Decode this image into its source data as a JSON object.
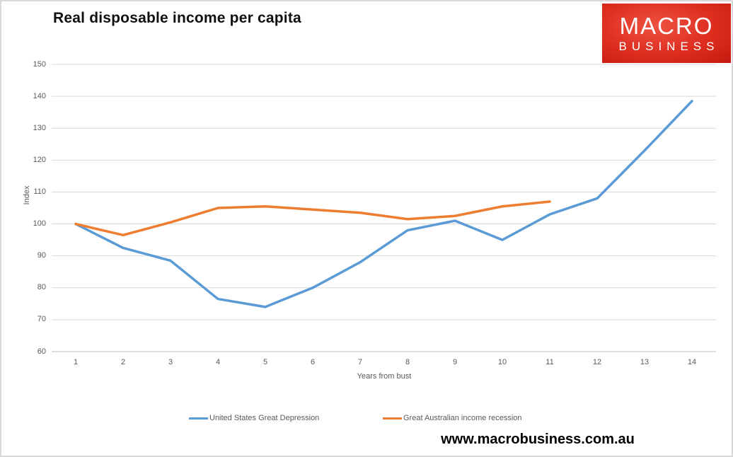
{
  "page": {
    "title": "Real disposable income per capita",
    "footer": "www.macrobusiness.com.au"
  },
  "logo": {
    "line1": "MACRO",
    "line2": "BUSINESS",
    "bg_color": "#d9261a",
    "text_color": "#ffffff"
  },
  "colors": {
    "us_series": "#5B9BD5",
    "au_series": "#ED7D31",
    "gridline": "#D9D9D9",
    "axis_line": "#BFBFBF",
    "tick_label": "#595959"
  },
  "chart_data": {
    "type": "line",
    "title": "Real disposable income per capita",
    "xlabel": "Years from bust",
    "ylabel": "Index",
    "xlim": [
      1,
      14
    ],
    "ylim": [
      60,
      150
    ],
    "ytick_step": 10,
    "yticks": [
      60,
      70,
      80,
      90,
      100,
      110,
      120,
      130,
      140,
      150
    ],
    "xticks": [
      1,
      2,
      3,
      4,
      5,
      6,
      7,
      8,
      9,
      10,
      11,
      12,
      13,
      14
    ],
    "grid": true,
    "legend_position": "bottom",
    "series": [
      {
        "name": "United States Great Depression",
        "color": "#5B9BD5",
        "x": [
          1,
          2,
          3,
          4,
          5,
          6,
          7,
          8,
          9,
          10,
          11,
          12,
          13,
          14
        ],
        "values": [
          100,
          92.5,
          88.5,
          76.5,
          74,
          80,
          88,
          98,
          101,
          95,
          103,
          108,
          123,
          138.5
        ]
      },
      {
        "name": "Great Australian income recession",
        "color": "#ED7D31",
        "x": [
          1,
          2,
          3,
          4,
          5,
          6,
          7,
          8,
          9,
          10,
          11
        ],
        "values": [
          100,
          96.5,
          100.5,
          105,
          105.5,
          104.5,
          103.5,
          101.5,
          102.5,
          105.5,
          107
        ]
      }
    ]
  }
}
